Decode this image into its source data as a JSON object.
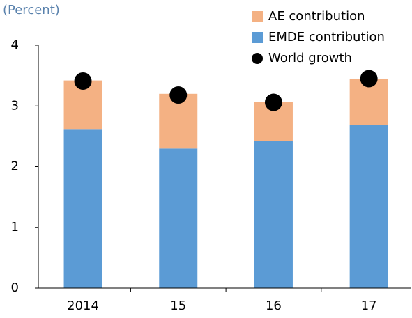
{
  "chart_data": {
    "type": "bar",
    "stacked": true,
    "ylabel": "(Percent)",
    "categories": [
      "2014",
      "15",
      "16",
      "17"
    ],
    "series": [
      {
        "name": "AE contribution",
        "color": "#f4b183",
        "values": [
          0.81,
          0.9,
          0.65,
          0.76
        ]
      },
      {
        "name": "EMDE contribution",
        "color": "#5b9bd5",
        "values": [
          2.61,
          2.3,
          2.42,
          2.69
        ]
      },
      {
        "name": "World growth",
        "type": "scatter",
        "color": "#000000",
        "values": [
          3.41,
          3.18,
          3.06,
          3.45
        ]
      }
    ],
    "ylim": [
      0,
      4
    ],
    "yticks": [
      0,
      1,
      2,
      3,
      4
    ],
    "grid": false,
    "legend": "upper right"
  }
}
